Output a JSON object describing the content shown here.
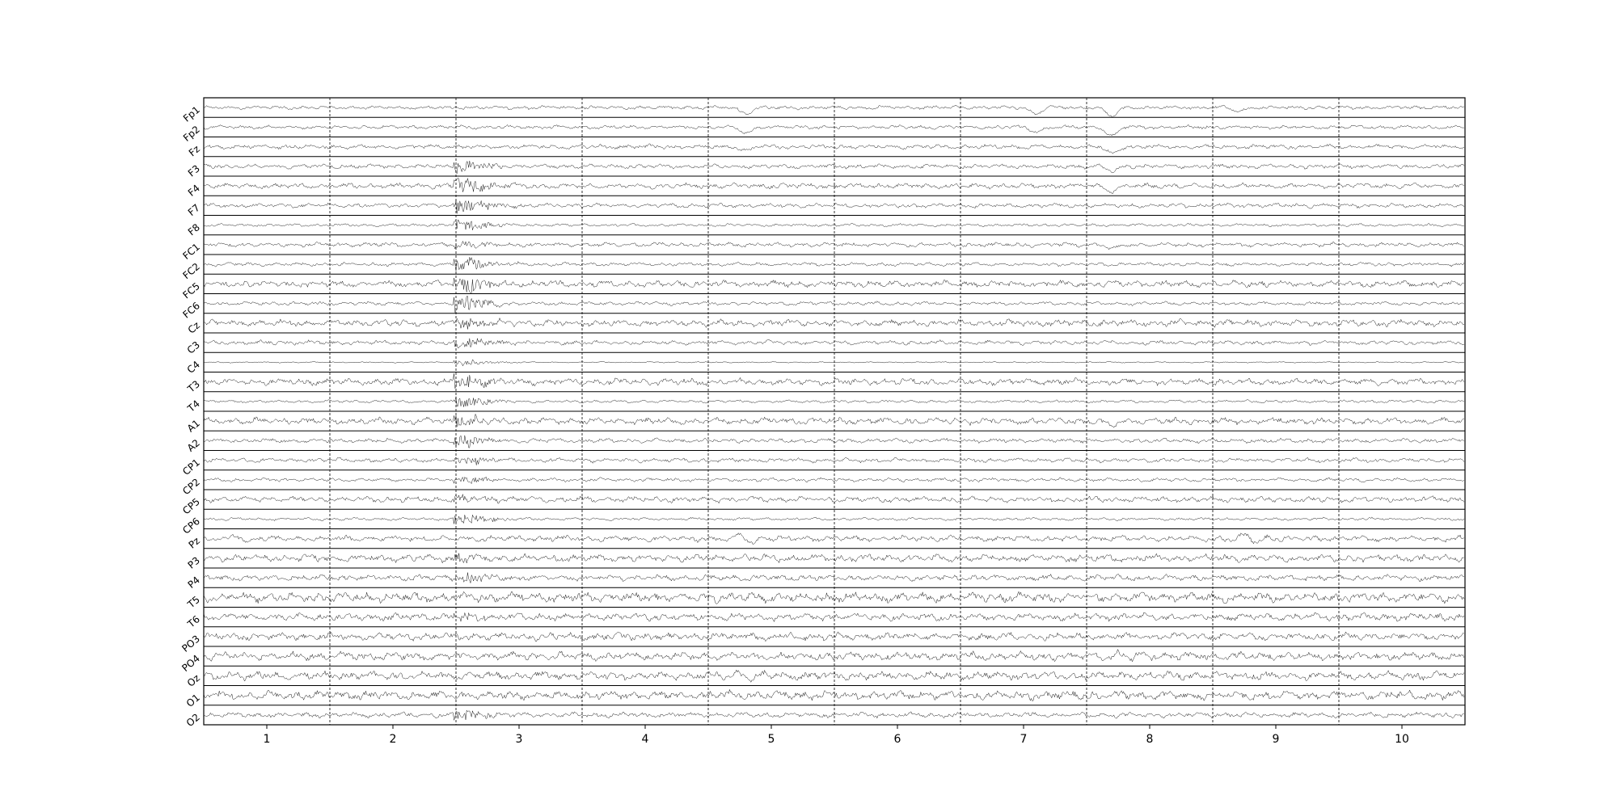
{
  "chart_data": {
    "type": "line",
    "title": "",
    "xlabel": "",
    "ylabel": "",
    "channels": [
      "Fp1",
      "Fp2",
      "Fz",
      "F3",
      "F4",
      "F7",
      "F8",
      "FC1",
      "FC2",
      "FC5",
      "FC6",
      "Cz",
      "C3",
      "C4",
      "T3",
      "T4",
      "A1",
      "A2",
      "CP1",
      "CP2",
      "CP5",
      "CP6",
      "Pz",
      "P3",
      "P4",
      "T5",
      "T6",
      "PO3",
      "PO4",
      "Oz",
      "O1",
      "O2"
    ],
    "xticks": [
      1,
      2,
      3,
      4,
      5,
      6,
      7,
      8,
      9,
      10
    ],
    "xtick_labels": [
      "1",
      "2",
      "3",
      "4",
      "5",
      "6",
      "7",
      "8",
      "9",
      "10"
    ],
    "xlim": [
      0.5,
      10.5
    ],
    "epoch_boundaries": [
      1.5,
      2.5,
      3.5,
      4.5,
      5.5,
      6.5,
      7.5,
      8.5,
      9.5
    ],
    "grid": "dashed vertical lines at epoch boundaries",
    "line_color": "#000000",
    "note_values": "signal traces are dense EEG waveforms; per-channel amplitude levels estimated",
    "series": [
      {
        "name": "Fp1",
        "amplitude": 0.25,
        "events": [
          [
            4.8,
            0.6,
            "blink"
          ],
          [
            7.1,
            0.6,
            "blink"
          ],
          [
            7.7,
            0.9,
            "blink"
          ],
          [
            8.7,
            0.4,
            "blink"
          ]
        ]
      },
      {
        "name": "Fp2",
        "amplitude": 0.25,
        "events": [
          [
            4.8,
            0.6,
            "blink"
          ],
          [
            7.1,
            0.5,
            "blink"
          ],
          [
            7.7,
            0.9,
            "blink"
          ]
        ]
      },
      {
        "name": "Fz",
        "amplitude": 0.3,
        "events": [
          [
            4.8,
            0.4,
            "blink"
          ],
          [
            7.7,
            0.7,
            "blink"
          ]
        ]
      },
      {
        "name": "F3",
        "amplitude": 0.3,
        "events": [
          [
            2.6,
            0.7,
            "burst"
          ],
          [
            7.7,
            0.5,
            "blink"
          ]
        ]
      },
      {
        "name": "F4",
        "amplitude": 0.35,
        "events": [
          [
            2.6,
            0.9,
            "burst"
          ],
          [
            7.7,
            0.5,
            "blink"
          ]
        ]
      },
      {
        "name": "F7",
        "amplitude": 0.3,
        "events": [
          [
            2.6,
            0.8,
            "burst"
          ]
        ]
      },
      {
        "name": "F8",
        "amplitude": 0.2,
        "events": [
          [
            2.6,
            0.6,
            "burst"
          ]
        ]
      },
      {
        "name": "FC1",
        "amplitude": 0.3,
        "events": [
          [
            2.6,
            0.4,
            "burst"
          ],
          [
            7.7,
            0.4,
            "blink"
          ]
        ]
      },
      {
        "name": "FC2",
        "amplitude": 0.25,
        "events": [
          [
            2.6,
            0.8,
            "burst"
          ]
        ]
      },
      {
        "name": "FC5",
        "amplitude": 0.45,
        "events": [
          [
            2.6,
            0.9,
            "burst"
          ]
        ]
      },
      {
        "name": "FC6",
        "amplitude": 0.25,
        "events": [
          [
            2.6,
            0.9,
            "burst"
          ]
        ]
      },
      {
        "name": "Cz",
        "amplitude": 0.45,
        "events": [
          [
            2.6,
            0.5,
            "burst"
          ]
        ]
      },
      {
        "name": "C3",
        "amplitude": 0.3,
        "events": [
          [
            2.6,
            0.6,
            "burst"
          ]
        ]
      },
      {
        "name": "C4",
        "amplitude": 0.08,
        "events": [
          [
            2.6,
            0.4,
            "burst"
          ]
        ]
      },
      {
        "name": "T3",
        "amplitude": 0.45,
        "events": [
          [
            2.6,
            0.9,
            "burst"
          ]
        ]
      },
      {
        "name": "T4",
        "amplitude": 0.2,
        "events": [
          [
            2.6,
            0.6,
            "burst"
          ]
        ]
      },
      {
        "name": "A1",
        "amplitude": 0.45,
        "events": [
          [
            2.6,
            0.6,
            "burst"
          ],
          [
            7.7,
            0.5,
            "blink"
          ]
        ]
      },
      {
        "name": "A2",
        "amplitude": 0.3,
        "events": [
          [
            2.6,
            0.6,
            "burst"
          ]
        ]
      },
      {
        "name": "CP1",
        "amplitude": 0.3,
        "events": [
          [
            2.6,
            0.5,
            "burst"
          ]
        ]
      },
      {
        "name": "CP2",
        "amplitude": 0.25,
        "events": [
          [
            2.6,
            0.4,
            "burst"
          ]
        ]
      },
      {
        "name": "CP5",
        "amplitude": 0.4,
        "events": [
          [
            2.6,
            0.4,
            "burst"
          ]
        ]
      },
      {
        "name": "CP6",
        "amplitude": 0.2,
        "events": [
          [
            2.6,
            0.6,
            "burst"
          ]
        ]
      },
      {
        "name": "Pz",
        "amplitude": 0.4,
        "events": [
          [
            0.8,
            0.5,
            "wave"
          ],
          [
            4.8,
            0.6,
            "wave"
          ],
          [
            8.8,
            0.5,
            "wave"
          ]
        ]
      },
      {
        "name": "P3",
        "amplitude": 0.5,
        "events": [
          [
            2.6,
            0.4,
            "burst"
          ]
        ]
      },
      {
        "name": "P4",
        "amplitude": 0.4,
        "events": [
          [
            2.6,
            0.5,
            "burst"
          ]
        ]
      },
      {
        "name": "T5",
        "amplitude": 0.65,
        "events": []
      },
      {
        "name": "T6",
        "amplitude": 0.5,
        "events": [
          [
            2.6,
            0.4,
            "burst"
          ]
        ]
      },
      {
        "name": "PO3",
        "amplitude": 0.5,
        "events": [
          [
            4.9,
            0.5,
            "wave"
          ]
        ]
      },
      {
        "name": "PO4",
        "amplitude": 0.55,
        "events": [
          [
            7.8,
            0.4,
            "wave"
          ]
        ]
      },
      {
        "name": "Oz",
        "amplitude": 0.55,
        "events": [
          [
            0.8,
            0.5,
            "wave"
          ],
          [
            4.8,
            0.5,
            "wave"
          ]
        ]
      },
      {
        "name": "O1",
        "amplitude": 0.6,
        "events": []
      },
      {
        "name": "O2",
        "amplitude": 0.35,
        "events": [
          [
            2.6,
            0.6,
            "burst"
          ]
        ]
      }
    ]
  }
}
